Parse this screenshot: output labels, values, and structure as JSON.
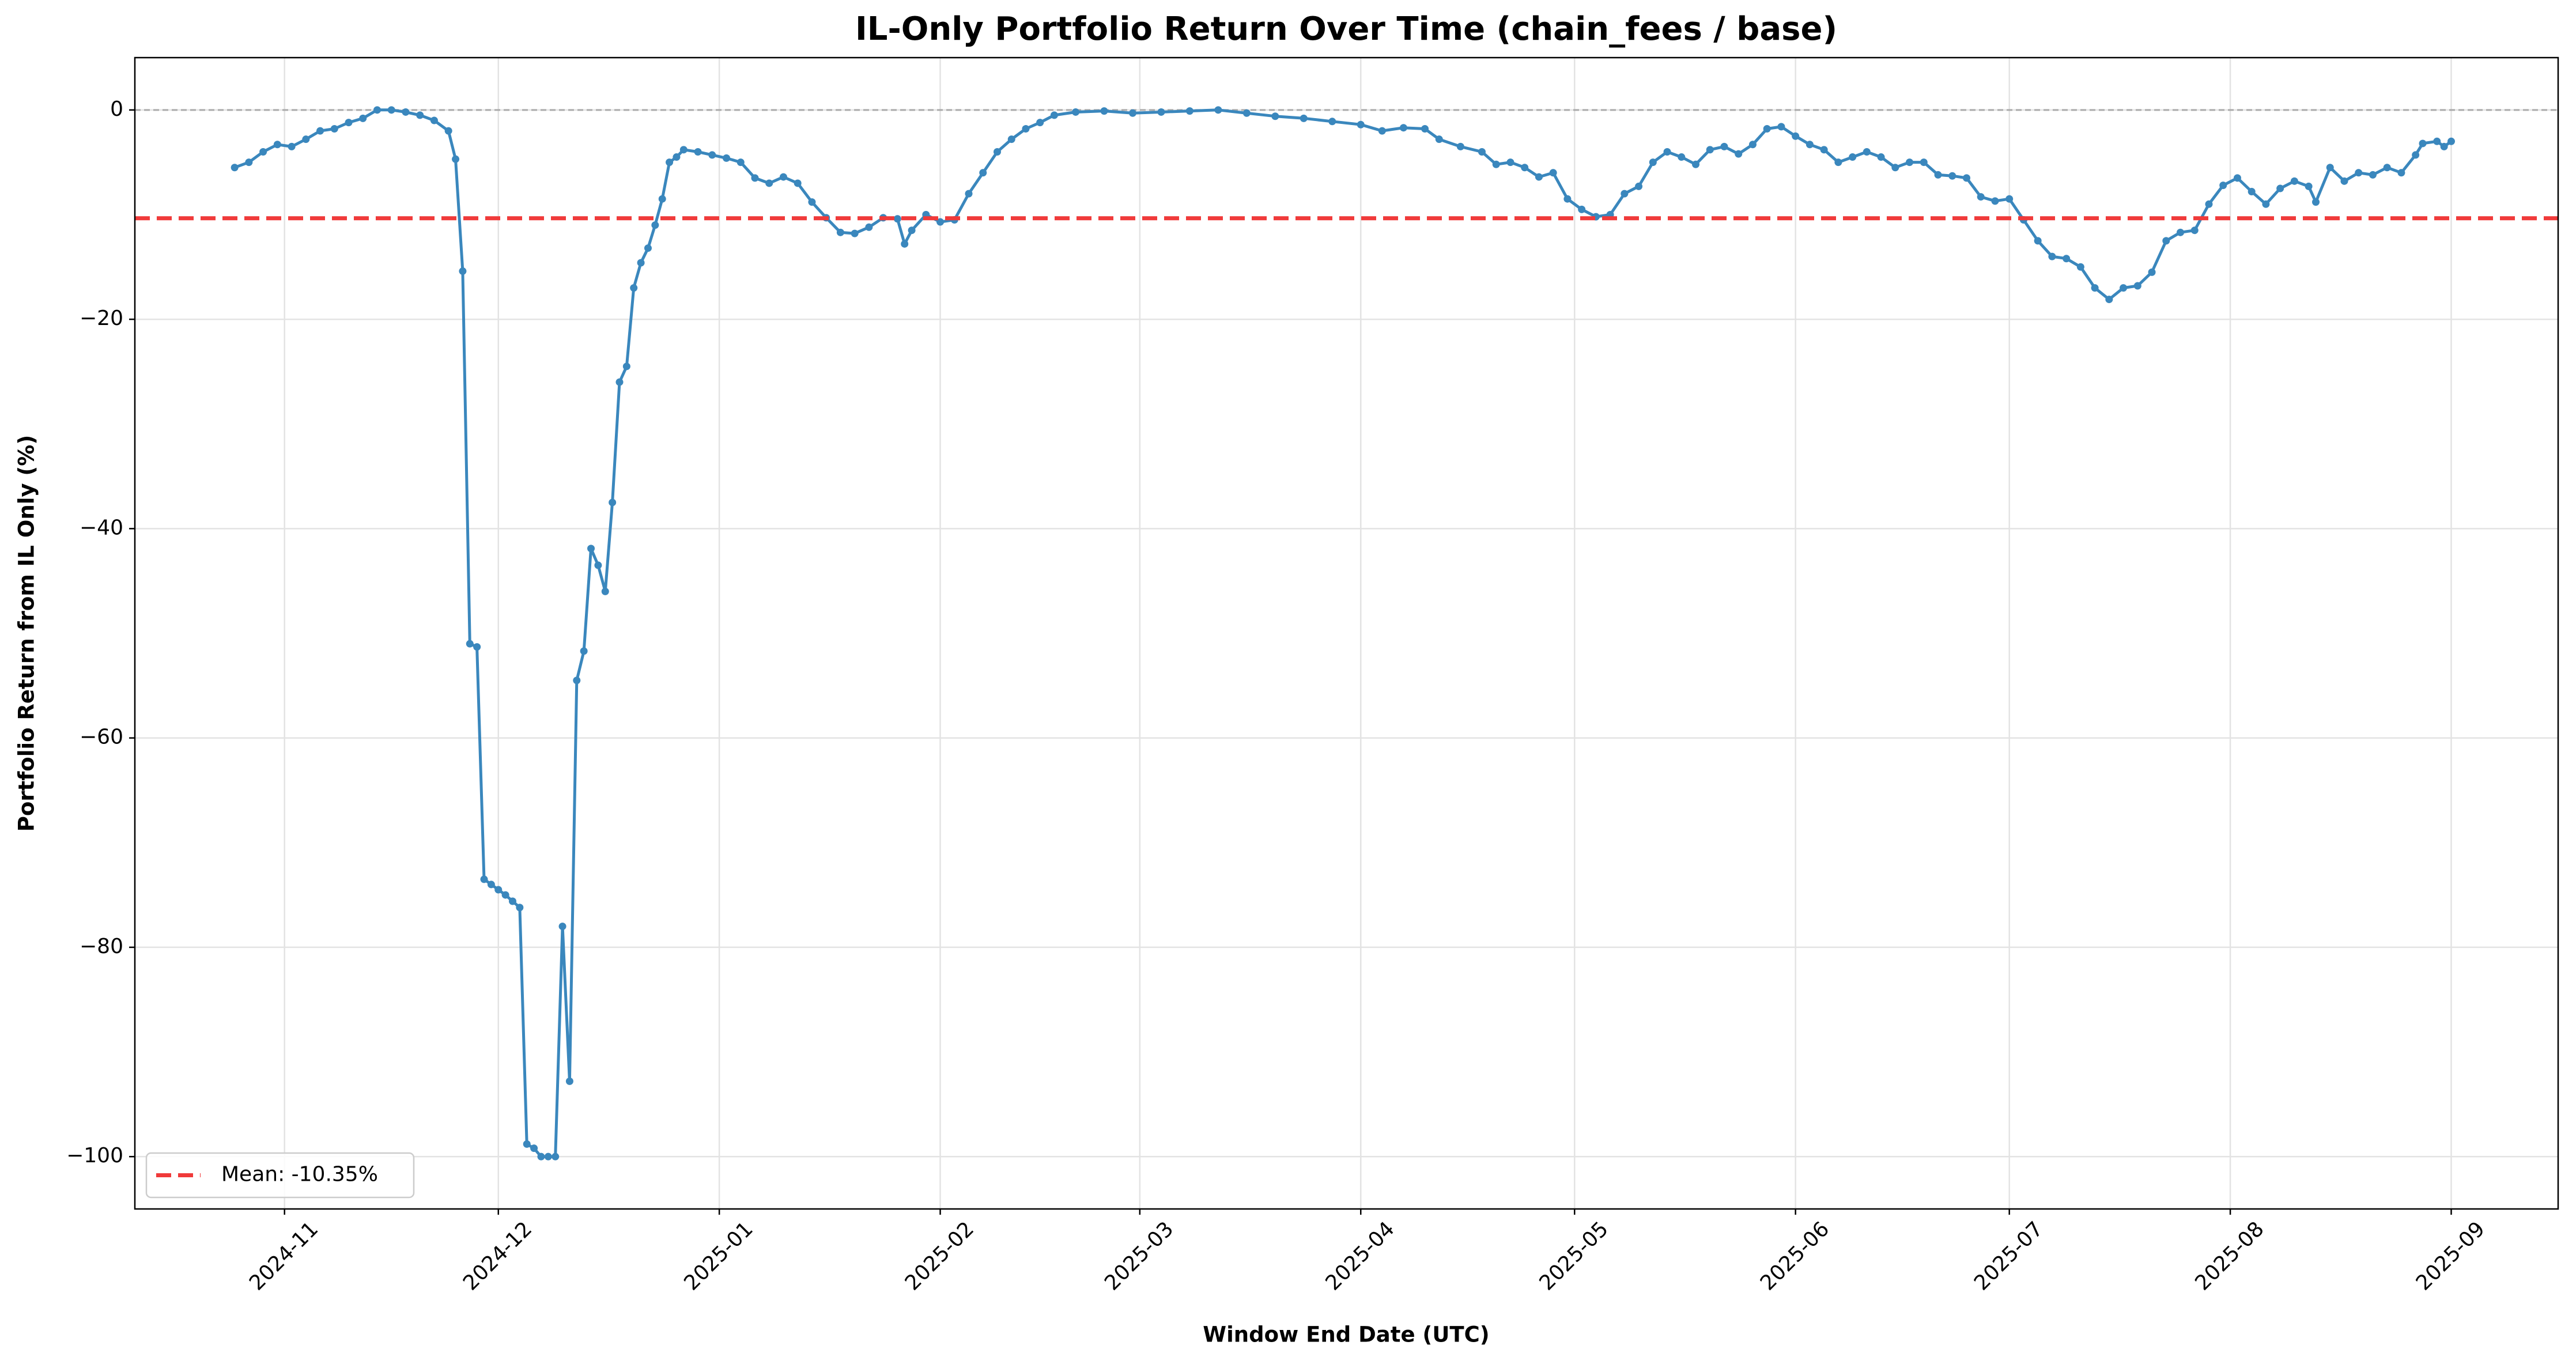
{
  "chart_data": {
    "type": "line",
    "title": "IL-Only Portfolio Return Over Time (chain_fees / base)",
    "xlabel": "Window End Date (UTC)",
    "ylabel": "Portfolio Return from IL Only (%)",
    "x": [
      "2024-10-25",
      "2024-10-27",
      "2024-10-29",
      "2024-10-31",
      "2024-11-02",
      "2024-11-04",
      "2024-11-06",
      "2024-11-08",
      "2024-11-10",
      "2024-11-12",
      "2024-11-14",
      "2024-11-16",
      "2024-11-18",
      "2024-11-20",
      "2024-11-22",
      "2024-11-24",
      "2024-11-25",
      "2024-11-26",
      "2024-11-27",
      "2024-11-28",
      "2024-11-29",
      "2024-11-30",
      "2024-12-01",
      "2024-12-02",
      "2024-12-03",
      "2024-12-04",
      "2024-12-05",
      "2024-12-06",
      "2024-12-07",
      "2024-12-08",
      "2024-12-09",
      "2024-12-10",
      "2024-12-11",
      "2024-12-12",
      "2024-12-13",
      "2024-12-14",
      "2024-12-15",
      "2024-12-16",
      "2024-12-17",
      "2024-12-18",
      "2024-12-19",
      "2024-12-20",
      "2024-12-21",
      "2024-12-22",
      "2024-12-23",
      "2024-12-24",
      "2024-12-25",
      "2024-12-26",
      "2024-12-27",
      "2024-12-29",
      "2024-12-31",
      "2025-01-02",
      "2025-01-04",
      "2025-01-06",
      "2025-01-08",
      "2025-01-10",
      "2025-01-12",
      "2025-01-14",
      "2025-01-16",
      "2025-01-18",
      "2025-01-20",
      "2025-01-22",
      "2025-01-24",
      "2025-01-26",
      "2025-01-27",
      "2025-01-28",
      "2025-01-30",
      "2025-02-01",
      "2025-02-03",
      "2025-02-05",
      "2025-02-07",
      "2025-02-09",
      "2025-02-11",
      "2025-02-13",
      "2025-02-15",
      "2025-02-17",
      "2025-02-20",
      "2025-02-24",
      "2025-02-28",
      "2025-03-04",
      "2025-03-08",
      "2025-03-12",
      "2025-03-16",
      "2025-03-20",
      "2025-03-24",
      "2025-03-28",
      "2025-04-01",
      "2025-04-04",
      "2025-04-07",
      "2025-04-10",
      "2025-04-12",
      "2025-04-15",
      "2025-04-18",
      "2025-04-20",
      "2025-04-22",
      "2025-04-24",
      "2025-04-26",
      "2025-04-28",
      "2025-04-30",
      "2025-05-02",
      "2025-05-04",
      "2025-05-06",
      "2025-05-08",
      "2025-05-10",
      "2025-05-12",
      "2025-05-14",
      "2025-05-16",
      "2025-05-18",
      "2025-05-20",
      "2025-05-22",
      "2025-05-24",
      "2025-05-26",
      "2025-05-28",
      "2025-05-30",
      "2025-06-01",
      "2025-06-03",
      "2025-06-05",
      "2025-06-07",
      "2025-06-09",
      "2025-06-11",
      "2025-06-13",
      "2025-06-15",
      "2025-06-17",
      "2025-06-19",
      "2025-06-21",
      "2025-06-23",
      "2025-06-25",
      "2025-06-27",
      "2025-06-29",
      "2025-07-01",
      "2025-07-03",
      "2025-07-05",
      "2025-07-07",
      "2025-07-09",
      "2025-07-11",
      "2025-07-13",
      "2025-07-15",
      "2025-07-17",
      "2025-07-19",
      "2025-07-21",
      "2025-07-23",
      "2025-07-25",
      "2025-07-27",
      "2025-07-29",
      "2025-07-31",
      "2025-08-02",
      "2025-08-04",
      "2025-08-06",
      "2025-08-08",
      "2025-08-10",
      "2025-08-12",
      "2025-08-13",
      "2025-08-15",
      "2025-08-17",
      "2025-08-19",
      "2025-08-21",
      "2025-08-23",
      "2025-08-25",
      "2025-08-27",
      "2025-08-28",
      "2025-08-30",
      "2025-08-31",
      "2025-09-01"
    ],
    "values": [
      -5.5,
      -5,
      -4,
      -3.3,
      -3.5,
      -2.8,
      -2,
      -1.8,
      -1.2,
      -0.8,
      0,
      0,
      -0.2,
      -0.5,
      -1,
      -2,
      -4.7,
      -15.4,
      -51,
      -51.3,
      -73.5,
      -74,
      -74.5,
      -75,
      -75.6,
      -76.2,
      -98.8,
      -99.2,
      -100,
      -100,
      -100,
      -78,
      -92.8,
      -54.5,
      -51.7,
      -41.9,
      -43.5,
      -46,
      -37.5,
      -26,
      -24.5,
      -17,
      -14.6,
      -13.2,
      -11,
      -8.5,
      -5,
      -4.5,
      -3.8,
      -4,
      -4.3,
      -4.6,
      -5,
      -6.5,
      -7,
      -6.4,
      -7,
      -8.8,
      -10.3,
      -11.7,
      -11.8,
      -11.2,
      -10.3,
      -10.4,
      -12.8,
      -11.5,
      -10,
      -10.7,
      -10.5,
      -8,
      -6,
      -4,
      -2.8,
      -1.8,
      -1.2,
      -0.5,
      -0.2,
      -0.1,
      -0.3,
      -0.2,
      -0.1,
      0,
      -0.3,
      -0.6,
      -0.8,
      -1.1,
      -1.4,
      -2,
      -1.7,
      -1.8,
      -2.8,
      -3.5,
      -4,
      -5.2,
      -5,
      -5.5,
      -6.4,
      -6,
      -8.5,
      -9.5,
      -10.2,
      -10,
      -8,
      -7.3,
      -5,
      -4,
      -4.5,
      -5.2,
      -3.8,
      -3.5,
      -4.2,
      -3.3,
      -1.8,
      -1.6,
      -2.5,
      -3.3,
      -3.8,
      -5,
      -4.5,
      -4,
      -4.5,
      -5.5,
      -5,
      -5,
      -6.2,
      -6.3,
      -6.5,
      -8.3,
      -8.7,
      -8.5,
      -10.5,
      -12.5,
      -14,
      -14.2,
      -15,
      -17,
      -18.1,
      -17,
      -16.8,
      -15.5,
      -12.5,
      -11.7,
      -11.5,
      -9,
      -7.2,
      -6.5,
      -7.8,
      -9,
      -7.5,
      -6.8,
      -7.3,
      -8.8,
      -5.5,
      -6.8,
      -6,
      -6.2,
      -5.5,
      -6,
      -4.3,
      -3.2,
      -3,
      -3.5,
      -3
    ],
    "color": "#3a87bd",
    "mean": {
      "value": -10.35,
      "label": "Mean: -10.35%",
      "color": "#f03a3a"
    },
    "zero_line": 0,
    "xlim": [
      "2024-10-11",
      "2025-09-16"
    ],
    "xticks": [
      "2024-11",
      "2024-12",
      "2025-01",
      "2025-02",
      "2025-03",
      "2025-04",
      "2025-05",
      "2025-06",
      "2025-07",
      "2025-08",
      "2025-09"
    ],
    "ylim": [
      -105,
      5
    ],
    "yticks": [
      {
        "value": -100,
        "label": "−100"
      },
      {
        "value": -80,
        "label": "−80"
      },
      {
        "value": -60,
        "label": "−60"
      },
      {
        "value": -40,
        "label": "−40"
      },
      {
        "value": -20,
        "label": "−20"
      },
      0
    ],
    "grid": true,
    "legend": "lower left"
  }
}
